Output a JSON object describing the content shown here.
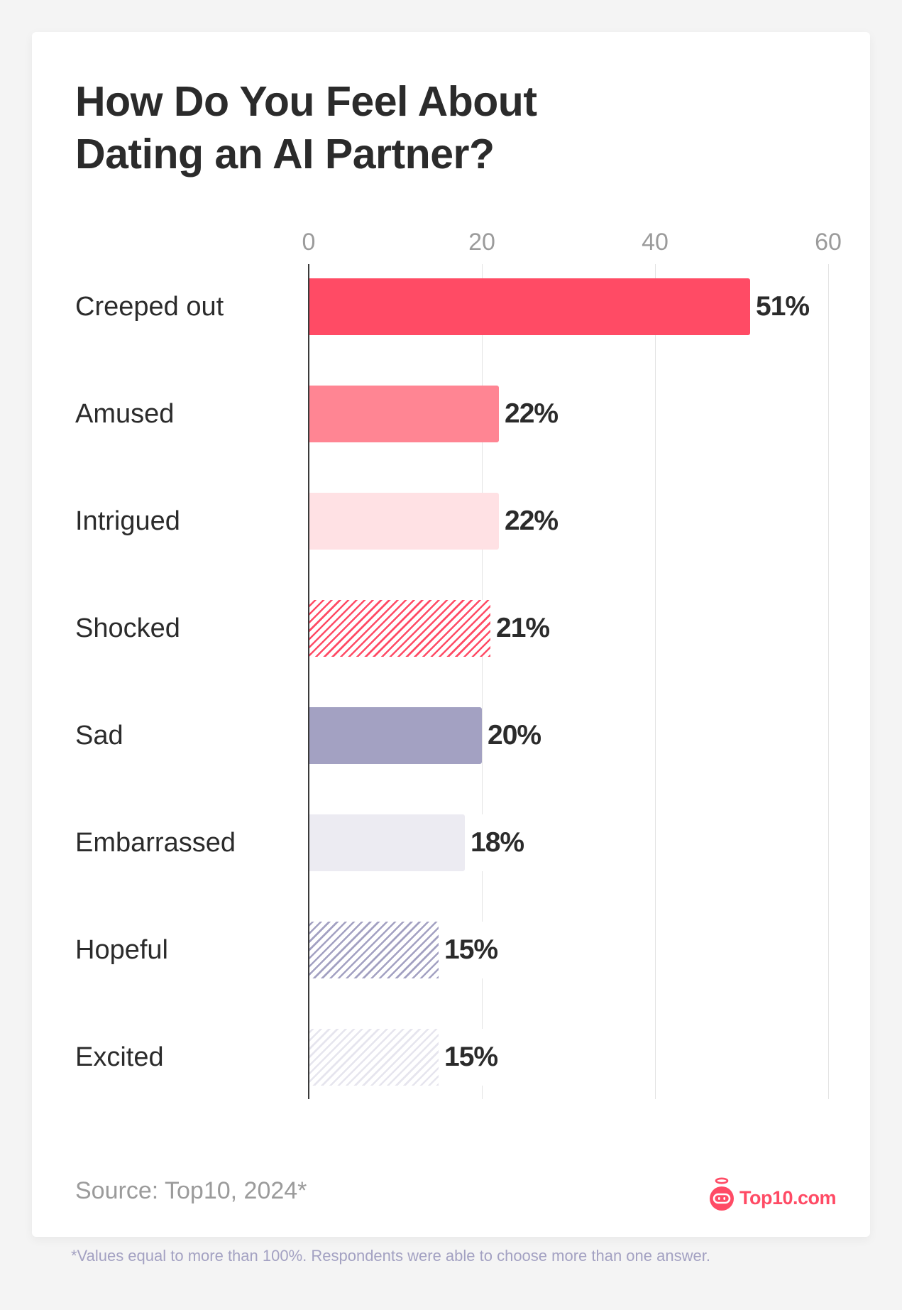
{
  "title": {
    "line1": "How Do You Feel About",
    "line2": "Dating an AI Partner?"
  },
  "axis": {
    "ticks": [
      "0",
      "20",
      "40",
      "60"
    ]
  },
  "source": "Source: Top10, 2024*",
  "logo": {
    "icon": "robot-angel-icon",
    "text": "Top10.com"
  },
  "footnote": "*Values equal to more than 100%. Respondents were able to choose more than one answer.",
  "colors": {
    "creeped_out": "#FF4B65",
    "amused": "#FF8593",
    "intrigued": "#FFE1E4",
    "shocked": "#FF4B65",
    "sad": "#A3A1C2",
    "embarrassed": "#ECEBF2",
    "hopeful": "#A3A1C2",
    "excited": "#E6E5EE"
  },
  "bars": [
    {
      "label": "Creeped out",
      "value": 51,
      "value_label": "51%",
      "fill": "solid",
      "color": "#FF4B65"
    },
    {
      "label": "Amused",
      "value": 22,
      "value_label": "22%",
      "fill": "solid",
      "color": "#FF8593"
    },
    {
      "label": "Intrigued",
      "value": 22,
      "value_label": "22%",
      "fill": "solid",
      "color": "#FFE1E4"
    },
    {
      "label": "Shocked",
      "value": 21,
      "value_label": "21%",
      "fill": "hatched",
      "color": "#FF4B65"
    },
    {
      "label": "Sad",
      "value": 20,
      "value_label": "20%",
      "fill": "solid",
      "color": "#A3A1C2"
    },
    {
      "label": "Embarrassed",
      "value": 18,
      "value_label": "18%",
      "fill": "solid",
      "color": "#ECEBF2"
    },
    {
      "label": "Hopeful",
      "value": 15,
      "value_label": "15%",
      "fill": "hatched",
      "color": "#A3A1C2"
    },
    {
      "label": "Excited",
      "value": 15,
      "value_label": "15%",
      "fill": "hatched",
      "color": "#E6E5EE"
    }
  ],
  "chart_data": {
    "type": "bar",
    "orientation": "horizontal",
    "title": "How Do You Feel About Dating an AI Partner?",
    "categories": [
      "Creeped out",
      "Amused",
      "Intrigued",
      "Shocked",
      "Sad",
      "Embarrassed",
      "Hopeful",
      "Excited"
    ],
    "values": [
      51,
      22,
      22,
      21,
      20,
      18,
      15,
      15
    ],
    "value_labels": [
      "51%",
      "22%",
      "22%",
      "21%",
      "20%",
      "18%",
      "15%",
      "15%"
    ],
    "xlabel": "",
    "ylabel": "",
    "xlim": [
      0,
      60
    ],
    "xticks": [
      0,
      20,
      40,
      60
    ],
    "grid": "vertical",
    "legend": "none",
    "source": "Source: Top10, 2024*",
    "footnote": "*Values equal to more than 100%. Respondents were able to choose more than one answer."
  }
}
